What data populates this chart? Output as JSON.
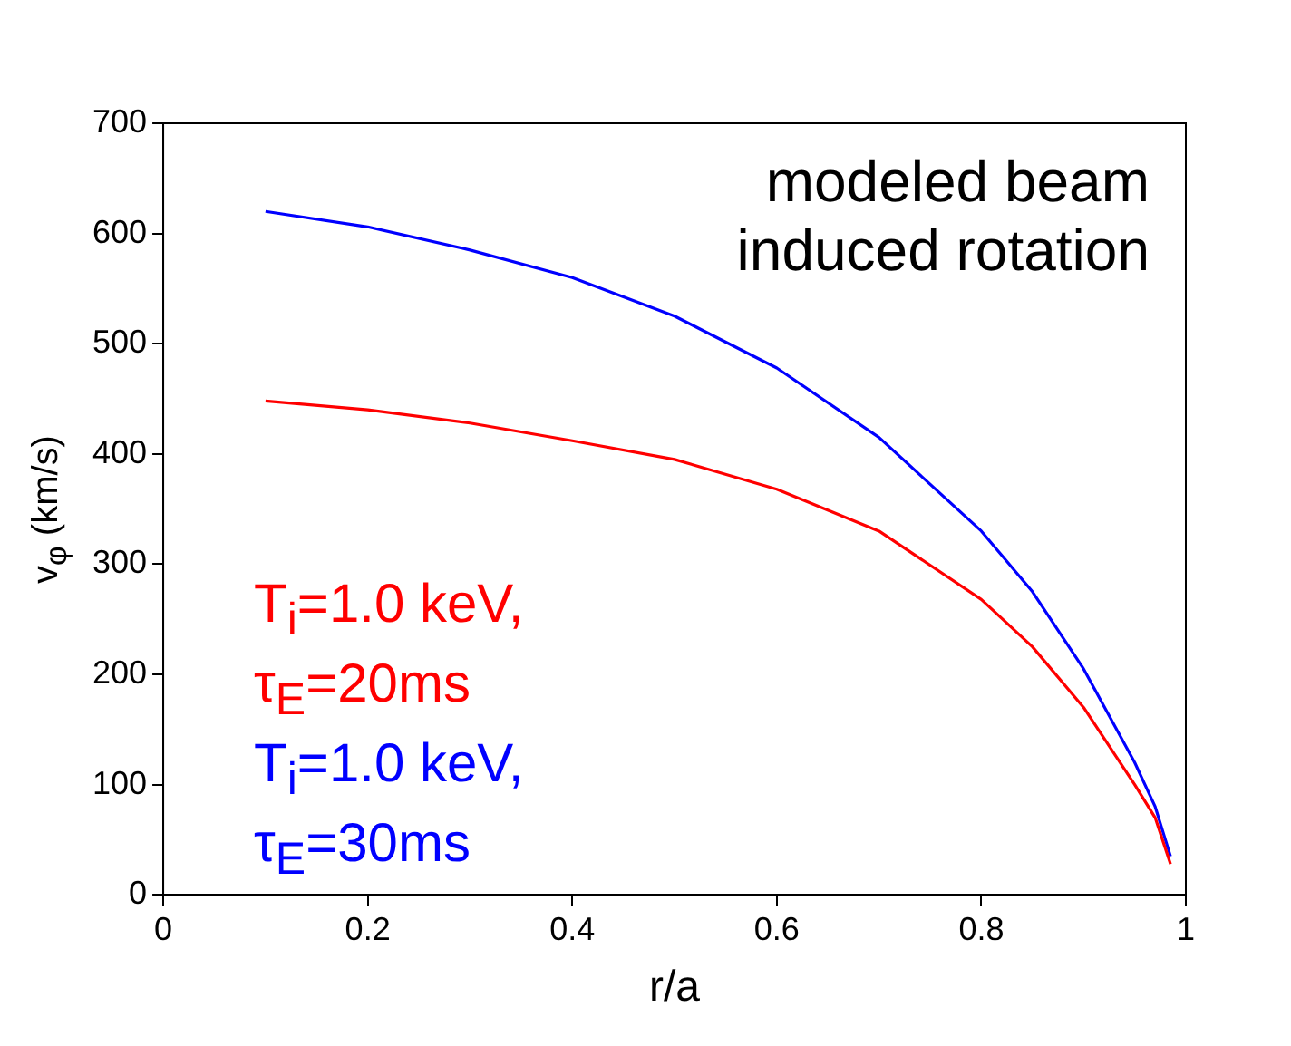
{
  "chart_data": {
    "type": "line",
    "xlabel": "r/a",
    "ylabel": "v$_{φ}$ (km/s)",
    "annotations": [
      "modeled beam\ninduced rotation"
    ],
    "xlim": [
      0,
      1
    ],
    "xticks": [
      0,
      0.2,
      0.4,
      0.6,
      0.8,
      1
    ],
    "ylim": [
      0,
      700
    ],
    "yticks": [
      0,
      100,
      200,
      300,
      400,
      500,
      600,
      700
    ],
    "grid": false,
    "legend": "bottom left",
    "marker": "none",
    "line_style": "solid",
    "series": [
      {
        "name": "T$_{i}$=1.0 keV,\nτ$_{E}$=20ms",
        "color": "#ff0000",
        "x": [
          0.1,
          0.2,
          0.3,
          0.4,
          0.5,
          0.6,
          0.7,
          0.8,
          0.85,
          0.9,
          0.95,
          0.97,
          0.985
        ],
        "values": [
          448,
          440,
          428,
          412,
          395,
          368,
          330,
          268,
          225,
          170,
          100,
          70,
          28
        ]
      },
      {
        "name": "T$_{i}$=1.0 keV,\nτ$_{E}$=30ms",
        "color": "#0000ff",
        "x": [
          0.1,
          0.2,
          0.3,
          0.4,
          0.5,
          0.6,
          0.7,
          0.8,
          0.85,
          0.9,
          0.95,
          0.97,
          0.985
        ],
        "values": [
          620,
          606,
          585,
          560,
          525,
          478,
          415,
          330,
          275,
          205,
          120,
          80,
          35
        ]
      }
    ]
  }
}
